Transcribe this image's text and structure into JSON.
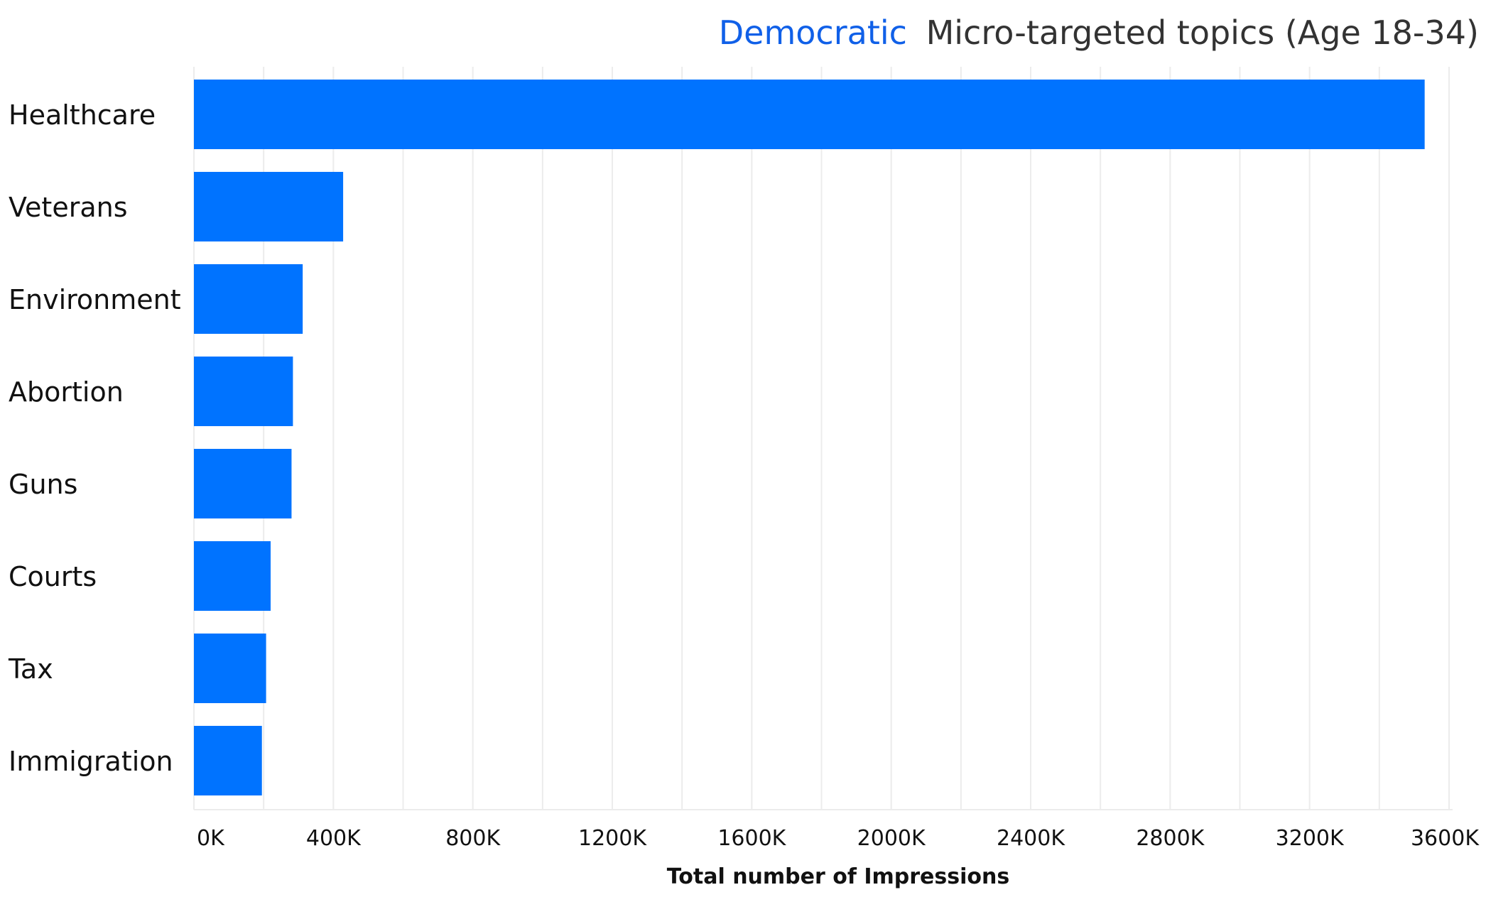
{
  "chart_data": {
    "type": "bar",
    "orientation": "horizontal",
    "title_highlight": "Democratic",
    "title_rest": "Micro-targeted topics (Age 18-34)",
    "xlabel": "Total number of Impressions",
    "ylabel": "",
    "categories": [
      "Healthcare",
      "Veterans",
      "Environment",
      "Abortion",
      "Guns",
      "Courts",
      "Tax",
      "Immigration"
    ],
    "values": [
      3530000,
      428000,
      312000,
      284000,
      280000,
      220000,
      207000,
      195000
    ],
    "xlim": [
      0,
      3600000
    ],
    "x_ticks": [
      0,
      400000,
      800000,
      1200000,
      1600000,
      2000000,
      2400000,
      2800000,
      3200000,
      3600000
    ],
    "x_tick_labels": [
      "0K",
      "400K",
      "800K",
      "1200K",
      "1600K",
      "2000K",
      "2400K",
      "2800K",
      "3200K",
      "3600K"
    ],
    "grid": true,
    "colors": {
      "bar": "#0073ff",
      "title_highlight": "#1060e8",
      "title_rest": "#333333",
      "grid": "#ececec"
    }
  }
}
